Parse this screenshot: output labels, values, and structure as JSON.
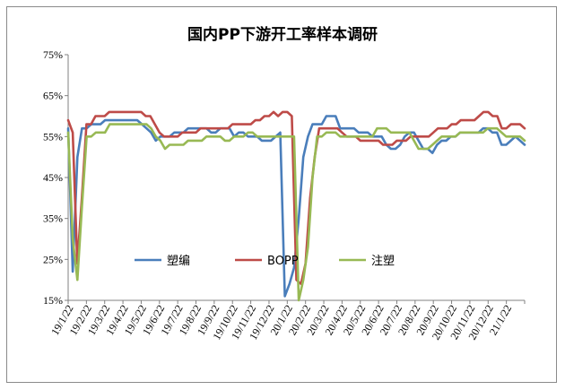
{
  "chart_data": {
    "type": "line",
    "title": "国内PP下游开工率样本调研",
    "xlabel": "",
    "ylabel": "",
    "ylim": [
      15,
      75
    ],
    "yticks": [
      "15%",
      "25%",
      "35%",
      "45%",
      "55%",
      "65%",
      "75%"
    ],
    "grid": false,
    "legend_position": "inside-lower-center",
    "x_tick_labels": [
      "19/1/22",
      "19/2/22",
      "19/3/22",
      "19/4/22",
      "19/5/22",
      "19/6/22",
      "19/7/22",
      "19/8/22",
      "19/9/22",
      "19/10/22",
      "19/11/22",
      "19/12/22",
      "20/1/22",
      "20/2/22",
      "20/3/22",
      "20/4/22",
      "20/5/22",
      "20/6/22",
      "20/7/22",
      "20/8/22",
      "20/9/22",
      "20/10/22",
      "20/11/22",
      "20/12/22",
      "21/1/22"
    ],
    "series": [
      {
        "name": "塑编",
        "color": "#4a7ebb",
        "values": [
          57,
          22,
          50,
          57,
          57,
          58,
          58,
          58,
          59,
          59,
          59,
          59,
          59,
          59,
          59,
          59,
          58,
          57,
          56,
          54,
          55,
          55,
          55,
          56,
          56,
          56,
          57,
          57,
          57,
          57,
          57,
          56,
          56,
          57,
          57,
          57,
          55,
          56,
          56,
          55,
          55,
          55,
          54,
          54,
          54,
          55,
          56,
          16,
          19,
          23,
          35,
          50,
          55,
          58,
          58,
          58,
          60,
          60,
          60,
          57,
          57,
          57,
          57,
          56,
          56,
          56,
          55,
          55,
          55,
          53,
          52,
          52,
          53,
          55,
          56,
          56,
          54,
          52,
          52,
          51,
          53,
          54,
          54,
          55,
          55,
          56,
          56,
          56,
          56,
          56,
          57,
          57,
          56,
          56,
          53,
          53,
          54,
          55,
          54,
          53
        ]
      },
      {
        "name": "BOPP",
        "color": "#be4b48",
        "values": [
          59,
          56,
          24,
          40,
          58,
          58,
          60,
          60,
          60,
          61,
          61,
          61,
          61,
          61,
          61,
          61,
          61,
          60,
          60,
          58,
          56,
          55,
          55,
          55,
          55,
          56,
          56,
          56,
          56,
          57,
          57,
          57,
          57,
          57,
          57,
          57,
          58,
          58,
          58,
          58,
          58,
          59,
          59,
          60,
          60,
          61,
          60,
          61,
          61,
          60,
          20,
          19,
          24,
          40,
          50,
          57,
          57,
          57,
          57,
          57,
          56,
          55,
          55,
          55,
          54,
          54,
          54,
          54,
          54,
          53,
          53,
          53,
          54,
          54,
          54,
          55,
          55,
          55,
          55,
          55,
          56,
          57,
          57,
          57,
          58,
          58,
          59,
          59,
          59,
          59,
          60,
          61,
          61,
          60,
          60,
          57,
          57,
          58,
          58,
          58,
          57
        ]
      },
      {
        "name": "注塑",
        "color": "#98b954",
        "values": [
          56,
          30,
          20,
          38,
          55,
          55,
          56,
          56,
          56,
          58,
          58,
          58,
          58,
          58,
          58,
          58,
          58,
          58,
          57,
          55,
          54,
          52,
          53,
          53,
          53,
          53,
          54,
          54,
          54,
          54,
          55,
          55,
          55,
          55,
          54,
          54,
          55,
          55,
          55,
          56,
          56,
          55,
          55,
          55,
          55,
          55,
          55,
          55,
          55,
          55,
          15,
          20,
          28,
          45,
          55,
          55,
          56,
          56,
          56,
          55,
          55,
          55,
          55,
          55,
          55,
          55,
          55,
          57,
          57,
          57,
          56,
          56,
          56,
          56,
          56,
          54,
          52,
          52,
          52,
          53,
          54,
          55,
          55,
          55,
          55,
          56,
          56,
          56,
          56,
          56,
          56,
          57,
          57,
          57,
          56,
          55,
          55,
          55,
          55,
          54
        ]
      }
    ]
  }
}
